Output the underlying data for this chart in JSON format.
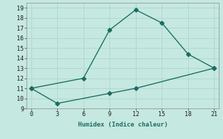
{
  "line1_x": [
    0,
    6,
    9,
    12,
    15,
    18,
    21
  ],
  "line1_y": [
    11,
    12,
    16.8,
    18.8,
    17.5,
    14.4,
    13
  ],
  "line2_x": [
    0,
    3,
    9,
    12,
    21
  ],
  "line2_y": [
    11,
    9.5,
    10.5,
    11,
    13
  ],
  "line_color": "#1a6e62",
  "bg_color": "#c5e8e0",
  "grid_color": "#b0d8ce",
  "xlabel": "Humidex (Indice chaleur)",
  "xlim": [
    -0.5,
    21.5
  ],
  "ylim": [
    9,
    19.5
  ],
  "xticks": [
    0,
    3,
    6,
    9,
    12,
    15,
    18,
    21
  ],
  "yticks": [
    9,
    10,
    11,
    12,
    13,
    14,
    15,
    16,
    17,
    18,
    19
  ],
  "marker": "D",
  "markersize": 3,
  "linewidth": 1.0
}
